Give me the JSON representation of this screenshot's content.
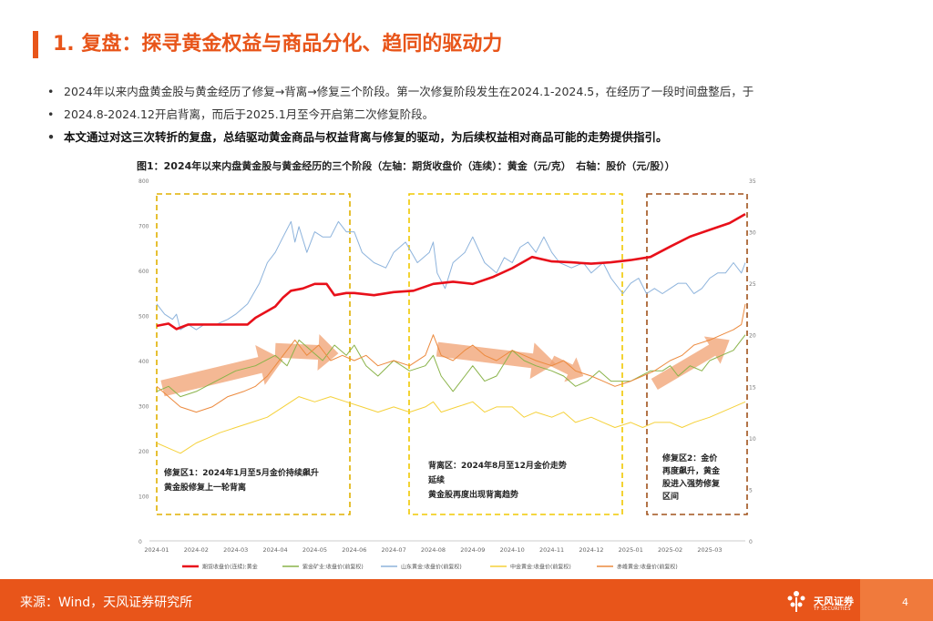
{
  "header": {
    "title": "1. 复盘：探寻黄金权益与商品分化、趋同的驱动力"
  },
  "bullets": [
    "2024年以来内盘黄金股与黄金经历了修复→背离→修复三个阶段。第一次修复阶段发生在2024.1-2024.5，在经历了一段时间盘整后，于",
    "2024.8-2024.12开启背离，而后于2025.1月至今开启第二次修复阶段。",
    "本文通过对这三次转折的复盘，总结驱动黄金商品与权益背离与修复的驱动，为后续权益相对商品可能的走势提供指引。"
  ],
  "figure_title": "图1：2024年以来内盘黄金股与黄金经历的三个阶段（左轴：期货收盘价（连续）：黄金（元/克）　右轴：股价（元/股））",
  "annotations": {
    "zone1": [
      "修复区1：2024年1月至5月金价持续飙升",
      "黄金股修复上一轮背离"
    ],
    "zone2": [
      "背离区：2024年8月至12月金价走势",
      "延续",
      "黄金股再度出现背离趋势"
    ],
    "zone3": [
      "修复区2：金价",
      "再度飙升，黄金",
      "股进入强势修复",
      "区间"
    ]
  },
  "colors": {
    "accent": "#e8551a",
    "gold_futures": "#e8101a",
    "zijin": "#8ab34a",
    "shandong": "#8db3dc",
    "zhongjin": "#f5d13a",
    "chifeng": "#ec8a3e",
    "zone_gold": "#e0b000",
    "zone_yellow": "#f0c800",
    "zone_brown": "#a0521b",
    "arrow": "#f0a070"
  },
  "chart_data": {
    "type": "line",
    "title": "2024年以来内盘黄金股与黄金经历的三个阶段",
    "x_ticks": [
      "2024-01",
      "2024-02",
      "2024-03",
      "2024-04",
      "2024-05",
      "2024-06",
      "2024-07",
      "2024-08",
      "2024-09",
      "2024-10",
      "2024-11",
      "2024-12",
      "2025-01",
      "2025-02",
      "2025-03"
    ],
    "x_range": [
      0,
      14.9
    ],
    "y_left": {
      "ticks": [
        "0",
        "100",
        "200",
        "300",
        "400",
        "500",
        "600",
        "700",
        "800"
      ],
      "range": [
        0,
        800
      ]
    },
    "y_right": {
      "ticks": [
        "0",
        "5",
        "10",
        "15",
        "20",
        "25",
        "30",
        "35"
      ],
      "range": [
        0,
        35
      ]
    },
    "series": [
      {
        "name": "期货收盘价(连续):黄金",
        "axis": "left",
        "color_key": "gold_futures",
        "width": 2.6,
        "points": [
          [
            0,
            477
          ],
          [
            0.3,
            482
          ],
          [
            0.5,
            470
          ],
          [
            0.8,
            480
          ],
          [
            1.0,
            480
          ],
          [
            1.5,
            480
          ],
          [
            2.0,
            480
          ],
          [
            2.3,
            480
          ],
          [
            2.5,
            495
          ],
          [
            2.8,
            510
          ],
          [
            3.0,
            520
          ],
          [
            3.2,
            540
          ],
          [
            3.4,
            555
          ],
          [
            3.7,
            560
          ],
          [
            4.0,
            570
          ],
          [
            4.3,
            570
          ],
          [
            4.5,
            545
          ],
          [
            4.8,
            550
          ],
          [
            5.0,
            550
          ],
          [
            5.5,
            545
          ],
          [
            6.0,
            552
          ],
          [
            6.5,
            555
          ],
          [
            7.0,
            570
          ],
          [
            7.5,
            575
          ],
          [
            8.0,
            570
          ],
          [
            8.5,
            585
          ],
          [
            9.0,
            605
          ],
          [
            9.5,
            630
          ],
          [
            10.0,
            620
          ],
          [
            10.5,
            618
          ],
          [
            11.0,
            615
          ],
          [
            11.5,
            618
          ],
          [
            12.0,
            623
          ],
          [
            12.5,
            630
          ],
          [
            13.0,
            653
          ],
          [
            13.5,
            675
          ],
          [
            14.0,
            690
          ],
          [
            14.5,
            705
          ],
          [
            14.9,
            725
          ]
        ]
      },
      {
        "name": "紫金矿业:收盘价(前复权)",
        "axis": "right",
        "color_key": "zijin",
        "width": 1,
        "points": [
          [
            0,
            14.5
          ],
          [
            0.3,
            15
          ],
          [
            0.6,
            14
          ],
          [
            1.0,
            14.5
          ],
          [
            1.5,
            15.5
          ],
          [
            2.0,
            16.5
          ],
          [
            2.5,
            17
          ],
          [
            3.0,
            18
          ],
          [
            3.3,
            17
          ],
          [
            3.6,
            19.5
          ],
          [
            3.9,
            18.5
          ],
          [
            4.2,
            17.5
          ],
          [
            4.5,
            19
          ],
          [
            4.8,
            18
          ],
          [
            5.0,
            19
          ],
          [
            5.3,
            17
          ],
          [
            5.6,
            16
          ],
          [
            6.0,
            17.5
          ],
          [
            6.4,
            16.5
          ],
          [
            6.8,
            17
          ],
          [
            7.0,
            18
          ],
          [
            7.2,
            16
          ],
          [
            7.5,
            14.5
          ],
          [
            7.8,
            16
          ],
          [
            8.0,
            17
          ],
          [
            8.3,
            15.5
          ],
          [
            8.6,
            16
          ],
          [
            9.0,
            18.5
          ],
          [
            9.3,
            17.5
          ],
          [
            9.6,
            17
          ],
          [
            10.0,
            16.5
          ],
          [
            10.3,
            16
          ],
          [
            10.6,
            15
          ],
          [
            10.9,
            15.5
          ],
          [
            11.2,
            16.5
          ],
          [
            11.5,
            15.5
          ],
          [
            12.0,
            15.5
          ],
          [
            12.5,
            16.5
          ],
          [
            12.8,
            16.5
          ],
          [
            13.0,
            17
          ],
          [
            13.2,
            16
          ],
          [
            13.5,
            17
          ],
          [
            13.8,
            16.5
          ],
          [
            14.0,
            17.5
          ],
          [
            14.3,
            18
          ],
          [
            14.6,
            18.5
          ],
          [
            14.9,
            20
          ]
        ]
      },
      {
        "name": "山东黄金:收盘价(前复权)",
        "axis": "right",
        "color_key": "shandong",
        "width": 1,
        "points": [
          [
            0,
            23
          ],
          [
            0.2,
            22
          ],
          [
            0.4,
            21.5
          ],
          [
            0.5,
            22
          ],
          [
            0.6,
            20.5
          ],
          [
            0.8,
            21
          ],
          [
            1.0,
            20.5
          ],
          [
            1.2,
            21
          ],
          [
            1.5,
            21
          ],
          [
            1.8,
            21.5
          ],
          [
            2.0,
            22
          ],
          [
            2.3,
            23
          ],
          [
            2.6,
            25
          ],
          [
            2.8,
            27
          ],
          [
            3.0,
            28
          ],
          [
            3.2,
            29.5
          ],
          [
            3.4,
            31
          ],
          [
            3.5,
            29
          ],
          [
            3.6,
            30.5
          ],
          [
            3.8,
            28
          ],
          [
            4.0,
            30
          ],
          [
            4.2,
            29.5
          ],
          [
            4.4,
            29.5
          ],
          [
            4.6,
            31
          ],
          [
            4.8,
            30
          ],
          [
            5.0,
            30
          ],
          [
            5.2,
            28
          ],
          [
            5.5,
            27
          ],
          [
            5.8,
            26.5
          ],
          [
            6.0,
            28
          ],
          [
            6.3,
            29
          ],
          [
            6.6,
            27
          ],
          [
            6.9,
            28
          ],
          [
            7.0,
            29
          ],
          [
            7.1,
            26
          ],
          [
            7.3,
            24.5
          ],
          [
            7.5,
            27
          ],
          [
            7.8,
            28
          ],
          [
            8.0,
            29.5
          ],
          [
            8.3,
            27
          ],
          [
            8.6,
            26
          ],
          [
            8.8,
            27.5
          ],
          [
            9.0,
            27
          ],
          [
            9.2,
            28.5
          ],
          [
            9.4,
            29
          ],
          [
            9.6,
            28
          ],
          [
            9.8,
            29.5
          ],
          [
            10.0,
            28
          ],
          [
            10.2,
            27
          ],
          [
            10.5,
            26.5
          ],
          [
            10.8,
            27
          ],
          [
            11.0,
            26
          ],
          [
            11.3,
            27
          ],
          [
            11.5,
            25.5
          ],
          [
            11.8,
            24
          ],
          [
            12.0,
            25
          ],
          [
            12.2,
            25.5
          ],
          [
            12.4,
            24
          ],
          [
            12.6,
            24.5
          ],
          [
            12.8,
            24
          ],
          [
            13.0,
            24.5
          ],
          [
            13.2,
            25
          ],
          [
            13.4,
            25
          ],
          [
            13.6,
            24
          ],
          [
            13.8,
            24.5
          ],
          [
            14.0,
            25.5
          ],
          [
            14.2,
            26
          ],
          [
            14.4,
            26
          ],
          [
            14.6,
            27
          ],
          [
            14.8,
            26
          ],
          [
            14.9,
            27
          ]
        ]
      },
      {
        "name": "中金黄金:收盘价(前复权)",
        "axis": "right",
        "color_key": "zhongjin",
        "width": 1,
        "points": [
          [
            0,
            9.5
          ],
          [
            0.3,
            9
          ],
          [
            0.6,
            8.5
          ],
          [
            0.8,
            9
          ],
          [
            1.0,
            9.5
          ],
          [
            1.3,
            10
          ],
          [
            1.6,
            10.5
          ],
          [
            2.0,
            11
          ],
          [
            2.4,
            11.5
          ],
          [
            2.8,
            12
          ],
          [
            3.2,
            13
          ],
          [
            3.6,
            14
          ],
          [
            4.0,
            13.5
          ],
          [
            4.4,
            14
          ],
          [
            4.8,
            13.5
          ],
          [
            5.2,
            13
          ],
          [
            5.6,
            12.5
          ],
          [
            6.0,
            13
          ],
          [
            6.4,
            12.5
          ],
          [
            6.8,
            13
          ],
          [
            7.0,
            13.5
          ],
          [
            7.2,
            12.5
          ],
          [
            7.6,
            13
          ],
          [
            8.0,
            13.5
          ],
          [
            8.3,
            12.5
          ],
          [
            8.6,
            13
          ],
          [
            9.0,
            13
          ],
          [
            9.3,
            12
          ],
          [
            9.6,
            12.5
          ],
          [
            10.0,
            12
          ],
          [
            10.3,
            12.5
          ],
          [
            10.6,
            11.5
          ],
          [
            11.0,
            12
          ],
          [
            11.3,
            11.5
          ],
          [
            11.6,
            11
          ],
          [
            12.0,
            11.5
          ],
          [
            12.3,
            11
          ],
          [
            12.6,
            11.5
          ],
          [
            13.0,
            11.5
          ],
          [
            13.3,
            11
          ],
          [
            13.6,
            11.5
          ],
          [
            14.0,
            12
          ],
          [
            14.3,
            12.5
          ],
          [
            14.6,
            13
          ],
          [
            14.9,
            13.5
          ]
        ]
      },
      {
        "name": "赤峰黄金:收盘价(前复权)",
        "axis": "right",
        "color_key": "chifeng",
        "width": 1,
        "points": [
          [
            0,
            15
          ],
          [
            0.3,
            14
          ],
          [
            0.6,
            13
          ],
          [
            1.0,
            12.5
          ],
          [
            1.4,
            13
          ],
          [
            1.8,
            14
          ],
          [
            2.2,
            14.5
          ],
          [
            2.5,
            15
          ],
          [
            2.8,
            16
          ],
          [
            3.0,
            17
          ],
          [
            3.2,
            18
          ],
          [
            3.5,
            19.5
          ],
          [
            3.8,
            18
          ],
          [
            4.1,
            19
          ],
          [
            4.4,
            17.5
          ],
          [
            4.7,
            18
          ],
          [
            5.0,
            17.5
          ],
          [
            5.3,
            18
          ],
          [
            5.6,
            17
          ],
          [
            6.0,
            17.5
          ],
          [
            6.4,
            17
          ],
          [
            6.8,
            18
          ],
          [
            7.0,
            20
          ],
          [
            7.2,
            18
          ],
          [
            7.5,
            17.5
          ],
          [
            7.8,
            18.5
          ],
          [
            8.0,
            19
          ],
          [
            8.3,
            18
          ],
          [
            8.6,
            17.5
          ],
          [
            9.0,
            18.5
          ],
          [
            9.3,
            18
          ],
          [
            9.6,
            17.5
          ],
          [
            10.0,
            17
          ],
          [
            10.3,
            17.5
          ],
          [
            10.6,
            16.5
          ],
          [
            11.0,
            16
          ],
          [
            11.3,
            15.5
          ],
          [
            11.6,
            15
          ],
          [
            12.0,
            15.5
          ],
          [
            12.3,
            16
          ],
          [
            12.6,
            16.5
          ],
          [
            13.0,
            17.5
          ],
          [
            13.3,
            18
          ],
          [
            13.6,
            19
          ],
          [
            14.0,
            19.5
          ],
          [
            14.3,
            20
          ],
          [
            14.6,
            20.5
          ],
          [
            14.8,
            21
          ],
          [
            14.9,
            23
          ]
        ]
      }
    ]
  },
  "legend": [
    "期货收盘价(连续):黄金",
    "紫金矿业:收盘价(前复权)",
    "山东黄金:收盘价(前复权)",
    "中金黄金:收盘价(前复权)",
    "赤峰黄金:收盘价(前复权)"
  ],
  "footer": {
    "source": "来源：Wind，天风证券研究所",
    "brand": "天风证券",
    "brand_en": "TF SECURITIES",
    "page": "4"
  }
}
